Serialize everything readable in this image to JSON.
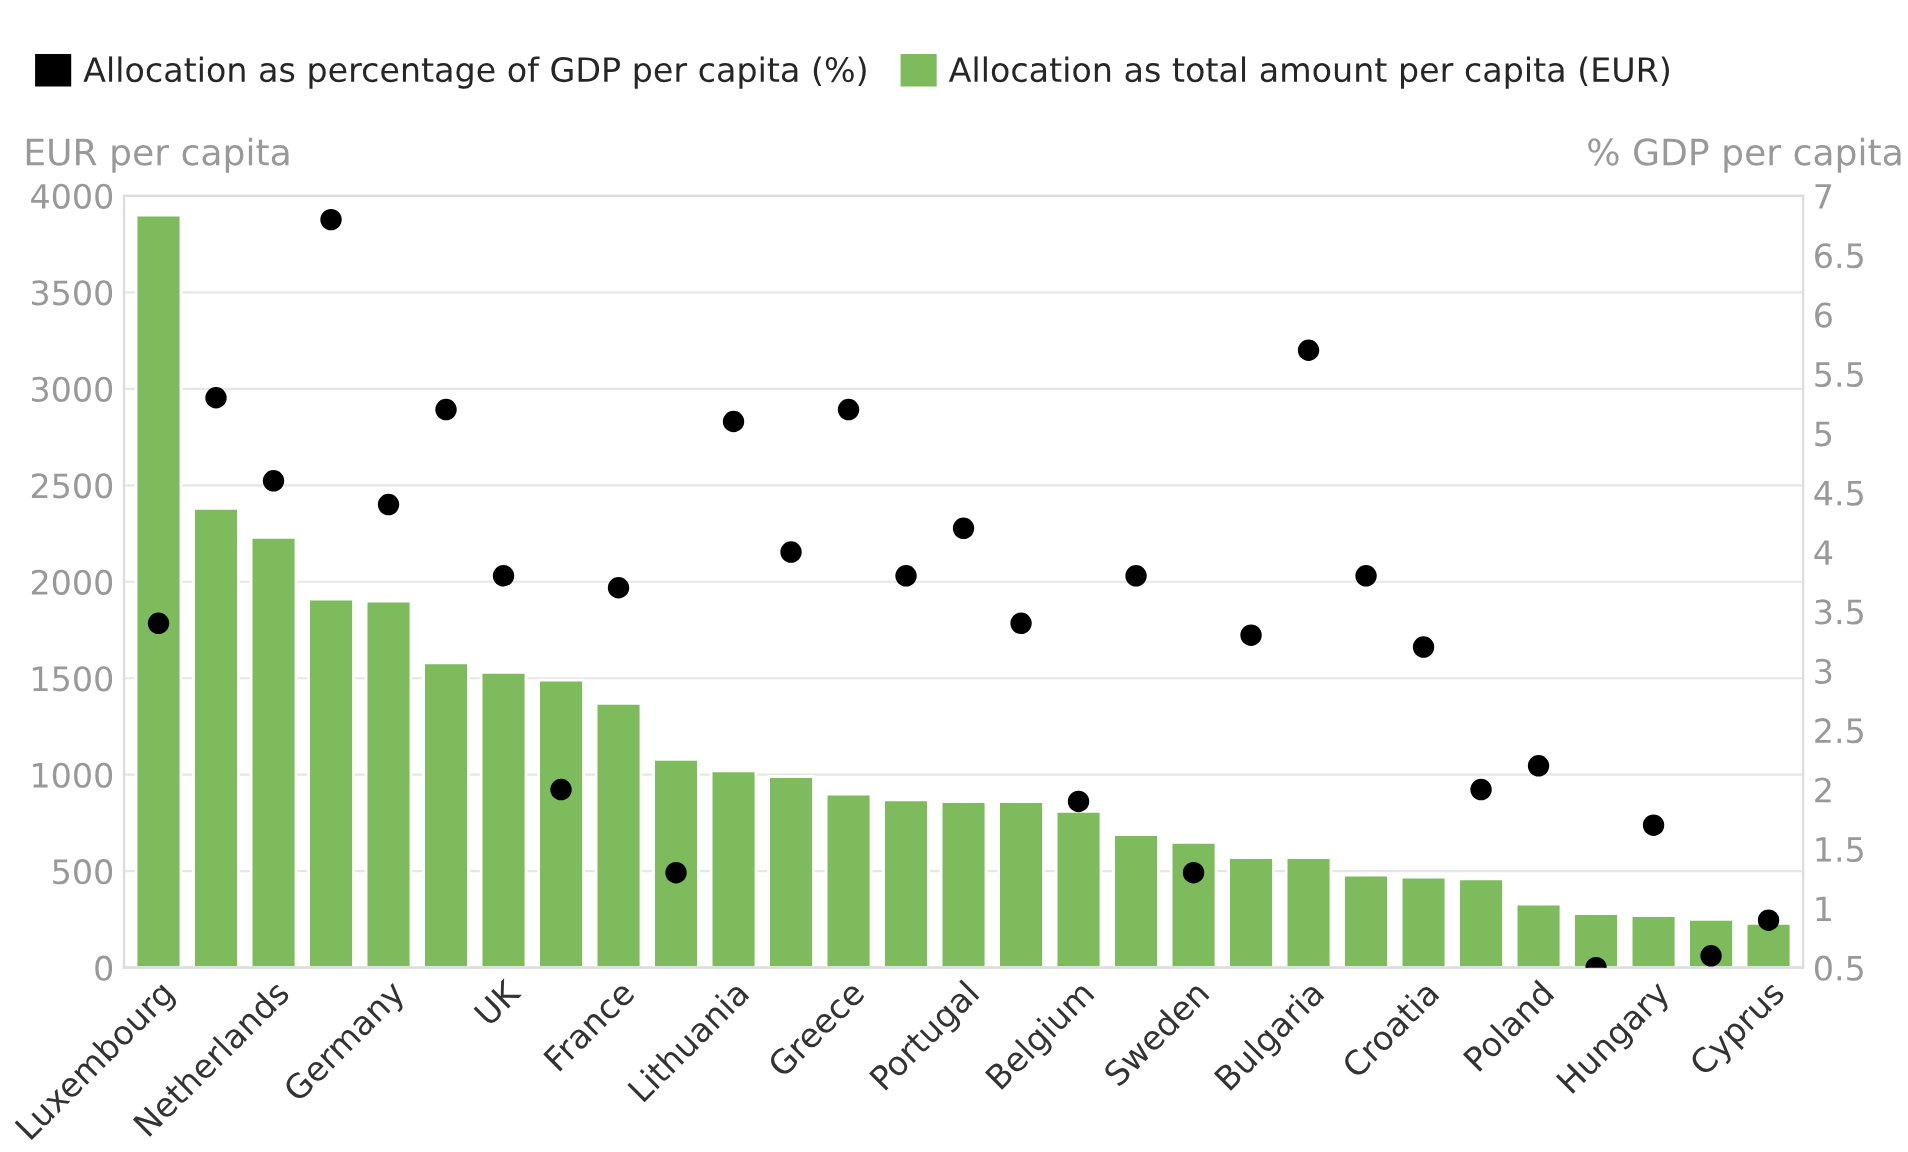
{
  "chart_data": {
    "type": "bar",
    "categories": [
      "Luxembourg",
      null,
      "Netherlands",
      null,
      "Germany",
      null,
      "UK",
      null,
      "France",
      null,
      "Lithuania",
      null,
      "Greece",
      null,
      "Portugal",
      null,
      "Belgium",
      null,
      "Sweden",
      null,
      "Bulgaria",
      null,
      "Croatia",
      null,
      "Poland",
      null,
      "Hungary",
      null,
      "Cyprus"
    ],
    "series": [
      {
        "name": "Allocation as percentage of GDP per capita (%)",
        "type": "scatter",
        "axis": "y2",
        "color": "#000000",
        "marker": "circle",
        "values": [
          3.4,
          5.3,
          4.6,
          6.8,
          4.4,
          5.2,
          3.8,
          2.0,
          3.7,
          1.3,
          5.1,
          4.0,
          5.2,
          3.8,
          4.2,
          3.4,
          1.9,
          3.8,
          1.3,
          3.3,
          5.7,
          3.8,
          3.2,
          2.0,
          2.2,
          0.5,
          1.7,
          0.6,
          0.9
        ]
      },
      {
        "name": "Allocation as total amount per capita (EUR)",
        "color": "#7dbb5c",
        "values": [
          3900,
          2380,
          2230,
          1910,
          1900,
          1580,
          1530,
          1490,
          1370,
          1080,
          1020,
          990,
          900,
          870,
          860,
          860,
          810,
          690,
          650,
          570,
          570,
          480,
          470,
          460,
          330,
          280,
          270,
          250,
          230
        ]
      }
    ],
    "ylabel": "EUR per capita",
    "y2label": "% GDP per capita",
    "ylim": [
      0,
      4000
    ],
    "yticks": [
      0,
      500,
      1000,
      1500,
      2000,
      2500,
      3000,
      3500,
      4000
    ],
    "y2lim": [
      0.5,
      7
    ],
    "y2ticks": [
      0.5,
      1,
      1.5,
      2,
      2.5,
      3,
      3.5,
      4,
      4.5,
      5,
      5.5,
      6,
      6.5,
      7
    ],
    "grid": "y",
    "legend": "top left"
  }
}
